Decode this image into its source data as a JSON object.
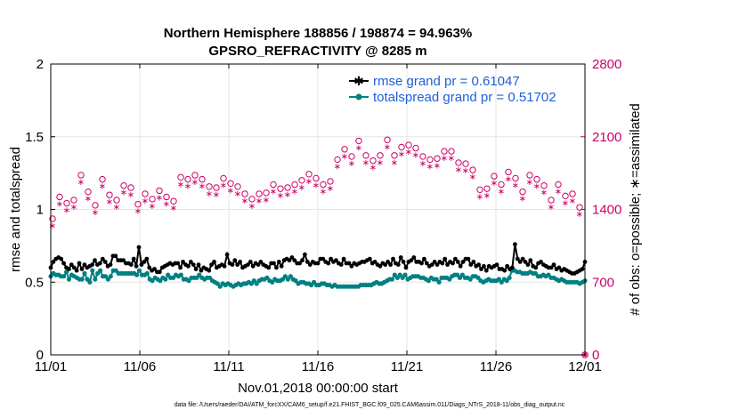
{
  "chart_data": {
    "type": "line",
    "title": "Northern Hemisphere 188856 / 198874 = 94.963%",
    "subtitle": "GPSRO_REFRACTIVITY @ 8285 m",
    "xlabel": "Nov.01,2018 00:00:00 start",
    "ylabel": "rmse and totalspread",
    "y2label": "# of obs: o=possible; ∗=assimilated",
    "footnote": "data file: /Users/raeder/DAI/ATM_forcXX/CAM6_setup/f.e21.FHIST_BGC.f09_025.CAM6assim.011/Diags_NTrS_2018-11/obs_diag_output.nc",
    "xlim": [
      0,
      30
    ],
    "ylim": [
      0,
      2
    ],
    "y2lim": [
      0,
      2800
    ],
    "x_ticks": [
      0,
      5,
      10,
      15,
      20,
      25,
      30
    ],
    "x_tick_labels": [
      "11/01",
      "11/06",
      "11/11",
      "11/16",
      "11/21",
      "11/26",
      "12/01"
    ],
    "y_ticks": [
      0,
      0.5,
      1,
      1.5,
      2
    ],
    "y_tick_labels": [
      "0",
      "0.5",
      "1",
      "1.5",
      "2"
    ],
    "y2_ticks": [
      0,
      700,
      1400,
      2100,
      2800
    ],
    "y2_tick_labels": [
      "0",
      "700",
      "1400",
      "2100",
      "2800"
    ],
    "legend_position": "top-right",
    "colors": {
      "rmse": "#000000",
      "spread": "#008080",
      "obs": "#cc0066",
      "legend_text": "#1f5fd6"
    },
    "series": [
      {
        "name": "rmse grand pr = 0.61047",
        "key": "rmse",
        "axis": "left",
        "values": [
          0.6,
          0.64,
          0.66,
          0.67,
          0.66,
          0.63,
          0.6,
          0.59,
          0.62,
          0.6,
          0.58,
          0.63,
          0.59,
          0.62,
          0.6,
          0.61,
          0.62,
          0.65,
          0.62,
          0.63,
          0.66,
          0.64,
          0.61,
          0.62,
          0.68,
          0.68,
          0.65,
          0.65,
          0.65,
          0.63,
          0.63,
          0.62,
          0.66,
          0.61,
          0.74,
          0.62,
          0.64,
          0.66,
          0.6,
          0.58,
          0.59,
          0.57,
          0.57,
          0.6,
          0.61,
          0.62,
          0.63,
          0.62,
          0.63,
          0.63,
          0.6,
          0.64,
          0.62,
          0.61,
          0.64,
          0.62,
          0.59,
          0.62,
          0.58,
          0.6,
          0.59,
          0.58,
          0.62,
          0.64,
          0.6,
          0.61,
          0.62,
          0.61,
          0.69,
          0.63,
          0.62,
          0.65,
          0.62,
          0.64,
          0.6,
          0.61,
          0.62,
          0.64,
          0.61,
          0.63,
          0.62,
          0.64,
          0.62,
          0.61,
          0.6,
          0.63,
          0.63,
          0.6,
          0.64,
          0.61,
          0.65,
          0.66,
          0.65,
          0.67,
          0.65,
          0.63,
          0.63,
          0.65,
          0.69,
          0.64,
          0.62,
          0.64,
          0.63,
          0.63,
          0.66,
          0.66,
          0.64,
          0.63,
          0.66,
          0.64,
          0.65,
          0.63,
          0.62,
          0.66,
          0.63,
          0.63,
          0.61,
          0.63,
          0.62,
          0.63,
          0.64,
          0.64,
          0.65,
          0.66,
          0.63,
          0.64,
          0.62,
          0.61,
          0.63,
          0.62,
          0.64,
          0.62,
          0.66,
          0.63,
          0.62,
          0.67,
          0.64,
          0.6,
          0.64,
          0.65,
          0.67,
          0.64,
          0.64,
          0.63,
          0.66,
          0.63,
          0.61,
          0.62,
          0.64,
          0.62,
          0.64,
          0.63,
          0.66,
          0.62,
          0.64,
          0.63,
          0.66,
          0.64,
          0.61,
          0.64,
          0.66,
          0.66,
          0.62,
          0.64,
          0.61,
          0.62,
          0.59,
          0.61,
          0.58,
          0.61,
          0.6,
          0.61,
          0.62,
          0.59,
          0.59,
          0.58,
          0.61,
          0.59,
          0.6,
          0.76,
          0.66,
          0.64,
          0.66,
          0.64,
          0.62,
          0.65,
          0.61,
          0.6,
          0.63,
          0.64,
          0.62,
          0.61,
          0.6,
          0.6,
          0.62,
          0.59,
          0.6,
          0.58,
          0.59,
          0.58,
          0.57,
          0.56,
          0.56,
          0.57,
          0.58,
          0.59,
          0.64
        ]
      },
      {
        "name": "totalspread grand pr = 0.51702",
        "key": "spread",
        "axis": "left",
        "values": [
          0.54,
          0.56,
          0.55,
          0.55,
          0.54,
          0.54,
          0.57,
          0.52,
          0.55,
          0.54,
          0.53,
          0.52,
          0.52,
          0.56,
          0.52,
          0.5,
          0.58,
          0.52,
          0.56,
          0.58,
          0.54,
          0.54,
          0.52,
          0.54,
          0.58,
          0.58,
          0.56,
          0.56,
          0.56,
          0.56,
          0.56,
          0.56,
          0.56,
          0.55,
          0.58,
          0.55,
          0.55,
          0.56,
          0.52,
          0.51,
          0.53,
          0.52,
          0.51,
          0.53,
          0.52,
          0.55,
          0.53,
          0.53,
          0.55,
          0.54,
          0.55,
          0.52,
          0.52,
          0.51,
          0.53,
          0.53,
          0.53,
          0.55,
          0.53,
          0.52,
          0.53,
          0.53,
          0.51,
          0.5,
          0.49,
          0.47,
          0.49,
          0.48,
          0.49,
          0.48,
          0.47,
          0.48,
          0.49,
          0.48,
          0.49,
          0.49,
          0.5,
          0.49,
          0.51,
          0.49,
          0.51,
          0.52,
          0.52,
          0.53,
          0.51,
          0.5,
          0.52,
          0.51,
          0.51,
          0.52,
          0.54,
          0.52,
          0.54,
          0.52,
          0.51,
          0.49,
          0.5,
          0.5,
          0.49,
          0.49,
          0.48,
          0.5,
          0.48,
          0.48,
          0.49,
          0.49,
          0.48,
          0.48,
          0.47,
          0.48,
          0.47,
          0.47,
          0.47,
          0.47,
          0.47,
          0.47,
          0.47,
          0.47,
          0.47,
          0.48,
          0.48,
          0.48,
          0.48,
          0.48,
          0.49,
          0.5,
          0.49,
          0.49,
          0.5,
          0.51,
          0.52,
          0.52,
          0.55,
          0.53,
          0.55,
          0.53,
          0.55,
          0.52,
          0.53,
          0.54,
          0.54,
          0.54,
          0.53,
          0.53,
          0.52,
          0.51,
          0.53,
          0.52,
          0.52,
          0.5,
          0.53,
          0.53,
          0.53,
          0.52,
          0.54,
          0.55,
          0.55,
          0.53,
          0.55,
          0.53,
          0.53,
          0.52,
          0.54,
          0.54,
          0.53,
          0.51,
          0.5,
          0.51,
          0.52,
          0.51,
          0.51,
          0.51,
          0.52,
          0.5,
          0.52,
          0.51,
          0.53,
          0.58,
          0.58,
          0.57,
          0.57,
          0.56,
          0.56,
          0.56,
          0.57,
          0.56,
          0.56,
          0.54,
          0.54,
          0.55,
          0.54,
          0.55,
          0.53,
          0.53,
          0.52,
          0.51,
          0.52,
          0.51,
          0.5,
          0.5,
          0.5,
          0.5,
          0.5,
          0.49,
          0.5,
          0.51
        ]
      }
    ],
    "obs_possible": {
      "name": "possible",
      "axis": "right",
      "x": [
        0.1,
        0.5,
        0.9,
        1.3,
        1.7,
        2.1,
        2.5,
        2.9,
        3.3,
        3.7,
        4.1,
        4.5,
        4.9,
        5.3,
        5.7,
        6.1,
        6.5,
        6.9,
        7.3,
        7.7,
        8.1,
        8.5,
        8.9,
        9.3,
        9.7,
        10.1,
        10.5,
        10.9,
        11.3,
        11.7,
        12.1,
        12.5,
        12.9,
        13.3,
        13.7,
        14.1,
        14.5,
        14.9,
        15.3,
        15.7,
        16.1,
        16.5,
        16.9,
        17.3,
        17.7,
        18.1,
        18.5,
        18.9,
        19.3,
        19.7,
        20.1,
        20.5,
        20.9,
        21.3,
        21.7,
        22.1,
        22.5,
        22.9,
        23.3,
        23.7,
        24.1,
        24.5,
        24.9,
        25.3,
        25.7,
        26.1,
        26.5,
        26.9,
        27.3,
        27.7,
        28.1,
        28.5,
        28.9,
        29.3,
        29.7
      ],
      "values": [
        1310,
        1520,
        1460,
        1490,
        1730,
        1570,
        1440,
        1690,
        1540,
        1490,
        1630,
        1610,
        1450,
        1550,
        1500,
        1580,
        1520,
        1480,
        1710,
        1690,
        1730,
        1690,
        1620,
        1610,
        1700,
        1650,
        1620,
        1550,
        1500,
        1550,
        1560,
        1640,
        1600,
        1610,
        1640,
        1680,
        1740,
        1700,
        1640,
        1670,
        1880,
        1980,
        1910,
        2060,
        1920,
        1870,
        1920,
        2070,
        1920,
        2000,
        2020,
        1990,
        1910,
        1880,
        1890,
        1960,
        1960,
        1850,
        1840,
        1780,
        1590,
        1600,
        1720,
        1640,
        1760,
        1700,
        1570,
        1730,
        1690,
        1630,
        1490,
        1640,
        1530,
        1550,
        1420
      ]
    },
    "obs_assimilated": {
      "name": "assimilated",
      "axis": "right",
      "x": [
        0.1,
        0.5,
        0.9,
        1.3,
        1.7,
        2.1,
        2.5,
        2.9,
        3.3,
        3.7,
        4.1,
        4.5,
        4.9,
        5.3,
        5.7,
        6.1,
        6.5,
        6.9,
        7.3,
        7.7,
        8.1,
        8.5,
        8.9,
        9.3,
        9.7,
        10.1,
        10.5,
        10.9,
        11.3,
        11.7,
        12.1,
        12.5,
        12.9,
        13.3,
        13.7,
        14.1,
        14.5,
        14.9,
        15.3,
        15.7,
        16.1,
        16.5,
        16.9,
        17.3,
        17.7,
        18.1,
        18.5,
        18.9,
        19.3,
        19.7,
        20.1,
        20.5,
        20.9,
        21.3,
        21.7,
        22.1,
        22.5,
        22.9,
        23.3,
        23.7,
        24.1,
        24.5,
        24.9,
        25.3,
        25.7,
        26.1,
        26.5,
        26.9,
        27.3,
        27.7,
        28.1,
        28.5,
        28.9,
        29.3,
        29.7
      ],
      "values": [
        1250,
        1460,
        1400,
        1430,
        1670,
        1510,
        1380,
        1630,
        1480,
        1430,
        1570,
        1550,
        1390,
        1490,
        1440,
        1520,
        1460,
        1420,
        1650,
        1630,
        1670,
        1630,
        1560,
        1550,
        1640,
        1590,
        1560,
        1490,
        1440,
        1490,
        1500,
        1580,
        1540,
        1550,
        1580,
        1620,
        1680,
        1640,
        1580,
        1610,
        1820,
        1920,
        1850,
        2000,
        1860,
        1810,
        1860,
        2010,
        1860,
        1940,
        1960,
        1930,
        1850,
        1820,
        1830,
        1900,
        1900,
        1790,
        1780,
        1720,
        1530,
        1540,
        1660,
        1580,
        1700,
        1640,
        1510,
        1670,
        1630,
        1570,
        1430,
        1580,
        1470,
        1490,
        1360
      ]
    }
  }
}
